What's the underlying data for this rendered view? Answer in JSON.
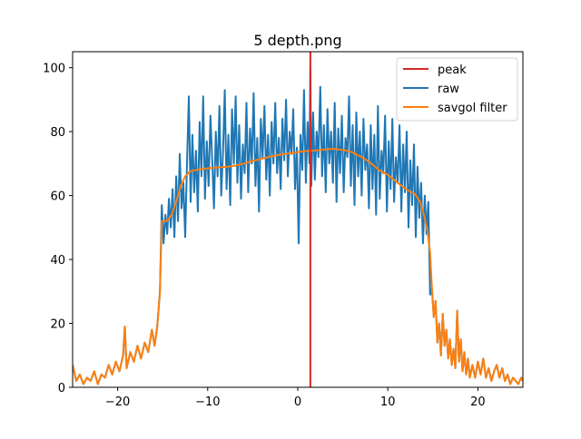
{
  "chart_data": {
    "type": "line",
    "title": "5 depth.png",
    "xlabel": "",
    "ylabel": "",
    "xlim": [
      -25,
      25
    ],
    "ylim": [
      0,
      105
    ],
    "xticks": [
      -20,
      -10,
      0,
      10,
      20
    ],
    "yticks": [
      0,
      20,
      40,
      60,
      80,
      100
    ],
    "grid": false,
    "legend_position": "top-right",
    "peak": {
      "name": "peak",
      "x": 1.4,
      "color": "#d62728"
    },
    "series": [
      {
        "name": "raw",
        "color": "#1f77b4",
        "points": [
          [
            -25.0,
            7
          ],
          [
            -24.6,
            2
          ],
          [
            -24.2,
            4
          ],
          [
            -23.8,
            1
          ],
          [
            -23.4,
            3
          ],
          [
            -23.0,
            2
          ],
          [
            -22.6,
            5
          ],
          [
            -22.2,
            1
          ],
          [
            -21.8,
            4
          ],
          [
            -21.4,
            3
          ],
          [
            -21.0,
            7
          ],
          [
            -20.6,
            4
          ],
          [
            -20.2,
            8
          ],
          [
            -19.8,
            5
          ],
          [
            -19.4,
            10
          ],
          [
            -19.2,
            19
          ],
          [
            -19.0,
            6
          ],
          [
            -18.6,
            11
          ],
          [
            -18.2,
            8
          ],
          [
            -17.8,
            13
          ],
          [
            -17.4,
            9
          ],
          [
            -17.0,
            14
          ],
          [
            -16.6,
            11
          ],
          [
            -16.2,
            18
          ],
          [
            -15.9,
            13
          ],
          [
            -15.6,
            19
          ],
          [
            -15.3,
            30
          ],
          [
            -15.1,
            57
          ],
          [
            -14.9,
            45
          ],
          [
            -14.7,
            54
          ],
          [
            -14.5,
            48
          ],
          [
            -14.3,
            59
          ],
          [
            -14.1,
            50
          ],
          [
            -13.9,
            62
          ],
          [
            -13.7,
            47
          ],
          [
            -13.5,
            66
          ],
          [
            -13.3,
            52
          ],
          [
            -13.1,
            73
          ],
          [
            -12.9,
            56
          ],
          [
            -12.7,
            64
          ],
          [
            -12.5,
            47
          ],
          [
            -12.3,
            70
          ],
          [
            -12.1,
            91
          ],
          [
            -11.9,
            58
          ],
          [
            -11.7,
            79
          ],
          [
            -11.5,
            61
          ],
          [
            -11.3,
            74
          ],
          [
            -11.1,
            55
          ],
          [
            -10.9,
            83
          ],
          [
            -10.7,
            66
          ],
          [
            -10.5,
            91
          ],
          [
            -10.3,
            59
          ],
          [
            -10.1,
            77
          ],
          [
            -9.9,
            63
          ],
          [
            -9.7,
            85
          ],
          [
            -9.5,
            71
          ],
          [
            -9.3,
            56
          ],
          [
            -9.1,
            80
          ],
          [
            -8.9,
            66
          ],
          [
            -8.7,
            88
          ],
          [
            -8.5,
            60
          ],
          [
            -8.3,
            74
          ],
          [
            -8.1,
            93
          ],
          [
            -7.9,
            62
          ],
          [
            -7.7,
            79
          ],
          [
            -7.5,
            57
          ],
          [
            -7.3,
            87
          ],
          [
            -7.1,
            70
          ],
          [
            -6.9,
            91
          ],
          [
            -6.7,
            64
          ],
          [
            -6.5,
            82
          ],
          [
            -6.3,
            59
          ],
          [
            -6.1,
            76
          ],
          [
            -5.9,
            67
          ],
          [
            -5.7,
            89
          ],
          [
            -5.5,
            61
          ],
          [
            -5.3,
            81
          ],
          [
            -5.1,
            70
          ],
          [
            -4.9,
            92
          ],
          [
            -4.7,
            63
          ],
          [
            -4.5,
            78
          ],
          [
            -4.3,
            55
          ],
          [
            -4.1,
            84
          ],
          [
            -3.9,
            72
          ],
          [
            -3.7,
            88
          ],
          [
            -3.5,
            65
          ],
          [
            -3.3,
            79
          ],
          [
            -3.1,
            60
          ],
          [
            -2.9,
            83
          ],
          [
            -2.7,
            70
          ],
          [
            -2.5,
            89
          ],
          [
            -2.3,
            67
          ],
          [
            -2.1,
            78
          ],
          [
            -1.9,
            62
          ],
          [
            -1.7,
            84
          ],
          [
            -1.5,
            71
          ],
          [
            -1.3,
            90
          ],
          [
            -1.1,
            66
          ],
          [
            -0.9,
            80
          ],
          [
            -0.7,
            73
          ],
          [
            -0.5,
            87
          ],
          [
            -0.3,
            62
          ],
          [
            -0.1,
            75
          ],
          [
            0.1,
            45
          ],
          [
            0.3,
            79
          ],
          [
            0.5,
            68
          ],
          [
            0.7,
            93
          ],
          [
            0.9,
            64
          ],
          [
            1.1,
            83
          ],
          [
            1.3,
            70
          ],
          [
            1.4,
            100
          ],
          [
            1.5,
            63
          ],
          [
            1.7,
            86
          ],
          [
            1.9,
            65
          ],
          [
            2.1,
            80
          ],
          [
            2.3,
            72
          ],
          [
            2.5,
            94
          ],
          [
            2.7,
            66
          ],
          [
            2.9,
            82
          ],
          [
            3.1,
            61
          ],
          [
            3.3,
            87
          ],
          [
            3.5,
            70
          ],
          [
            3.7,
            80
          ],
          [
            3.9,
            64
          ],
          [
            4.1,
            89
          ],
          [
            4.3,
            58
          ],
          [
            4.5,
            81
          ],
          [
            4.7,
            67
          ],
          [
            4.9,
            85
          ],
          [
            5.1,
            61
          ],
          [
            5.3,
            78
          ],
          [
            5.5,
            72
          ],
          [
            5.7,
            91
          ],
          [
            5.9,
            63
          ],
          [
            6.1,
            82
          ],
          [
            6.3,
            57
          ],
          [
            6.5,
            86
          ],
          [
            6.7,
            66
          ],
          [
            6.9,
            80
          ],
          [
            7.1,
            60
          ],
          [
            7.3,
            84
          ],
          [
            7.5,
            68
          ],
          [
            7.7,
            76
          ],
          [
            7.9,
            56
          ],
          [
            8.1,
            82
          ],
          [
            8.3,
            62
          ],
          [
            8.5,
            79
          ],
          [
            8.7,
            54
          ],
          [
            8.9,
            88
          ],
          [
            9.1,
            59
          ],
          [
            9.3,
            74
          ],
          [
            9.5,
            67
          ],
          [
            9.7,
            85
          ],
          [
            9.9,
            55
          ],
          [
            10.1,
            77
          ],
          [
            10.3,
            62
          ],
          [
            10.5,
            84
          ],
          [
            10.7,
            58
          ],
          [
            10.9,
            72
          ],
          [
            11.1,
            64
          ],
          [
            11.3,
            82
          ],
          [
            11.5,
            55
          ],
          [
            11.7,
            76
          ],
          [
            11.9,
            61
          ],
          [
            12.1,
            80
          ],
          [
            12.3,
            50
          ],
          [
            12.5,
            71
          ],
          [
            12.7,
            57
          ],
          [
            12.9,
            76
          ],
          [
            13.1,
            47
          ],
          [
            13.3,
            69
          ],
          [
            13.5,
            53
          ],
          [
            13.7,
            64
          ],
          [
            13.9,
            45
          ],
          [
            14.1,
            60
          ],
          [
            14.3,
            48
          ],
          [
            14.5,
            58
          ],
          [
            14.7,
            29
          ],
          [
            14.9,
            31
          ],
          [
            15.1,
            22
          ],
          [
            15.3,
            27
          ],
          [
            15.5,
            14
          ],
          [
            15.7,
            20
          ],
          [
            15.9,
            10
          ],
          [
            16.1,
            23
          ],
          [
            16.3,
            13
          ],
          [
            16.5,
            18
          ],
          [
            16.7,
            9
          ],
          [
            16.9,
            15
          ],
          [
            17.1,
            7
          ],
          [
            17.3,
            12
          ],
          [
            17.5,
            6
          ],
          [
            17.7,
            24
          ],
          [
            17.9,
            8
          ],
          [
            18.1,
            15
          ],
          [
            18.3,
            5
          ],
          [
            18.5,
            11
          ],
          [
            18.7,
            4
          ],
          [
            18.9,
            9
          ],
          [
            19.1,
            3
          ],
          [
            19.4,
            7
          ],
          [
            19.7,
            3
          ],
          [
            20.0,
            8
          ],
          [
            20.3,
            4
          ],
          [
            20.6,
            9
          ],
          [
            20.9,
            3
          ],
          [
            21.2,
            6
          ],
          [
            21.5,
            2
          ],
          [
            21.8,
            5
          ],
          [
            22.1,
            7
          ],
          [
            22.4,
            3
          ],
          [
            22.7,
            6
          ],
          [
            23.0,
            2
          ],
          [
            23.3,
            4
          ],
          [
            23.6,
            1
          ],
          [
            23.9,
            3
          ],
          [
            24.2,
            2
          ],
          [
            24.5,
            1
          ],
          [
            24.8,
            3
          ],
          [
            25.0,
            2
          ]
        ]
      },
      {
        "name": "savgol filter",
        "color": "#ff7f0e",
        "points": [
          [
            -25.0,
            7
          ],
          [
            -24.6,
            2
          ],
          [
            -24.2,
            4
          ],
          [
            -23.8,
            1
          ],
          [
            -23.4,
            3
          ],
          [
            -23.0,
            2
          ],
          [
            -22.6,
            5
          ],
          [
            -22.2,
            1
          ],
          [
            -21.8,
            4
          ],
          [
            -21.4,
            3
          ],
          [
            -21.0,
            7
          ],
          [
            -20.6,
            4
          ],
          [
            -20.2,
            8
          ],
          [
            -19.8,
            5
          ],
          [
            -19.4,
            10
          ],
          [
            -19.2,
            19
          ],
          [
            -19.0,
            6
          ],
          [
            -18.6,
            11
          ],
          [
            -18.2,
            8
          ],
          [
            -17.8,
            13
          ],
          [
            -17.4,
            9
          ],
          [
            -17.0,
            14
          ],
          [
            -16.6,
            11
          ],
          [
            -16.2,
            18
          ],
          [
            -15.9,
            13
          ],
          [
            -15.6,
            19
          ],
          [
            -15.3,
            30
          ],
          [
            -15.1,
            52
          ],
          [
            -14.5,
            52
          ],
          [
            -14.0,
            54
          ],
          [
            -13.5,
            58
          ],
          [
            -13.0,
            63
          ],
          [
            -12.5,
            66
          ],
          [
            -12.0,
            67.5
          ],
          [
            -11.0,
            68.2
          ],
          [
            -10.0,
            68.5
          ],
          [
            -9.0,
            68.8
          ],
          [
            -8.0,
            69.0
          ],
          [
            -7.0,
            69.3
          ],
          [
            -6.0,
            70.0
          ],
          [
            -5.0,
            70.8
          ],
          [
            -4.0,
            71.5
          ],
          [
            -3.0,
            72.2
          ],
          [
            -2.0,
            72.8
          ],
          [
            -1.0,
            73.2
          ],
          [
            0.0,
            73.6
          ],
          [
            1.0,
            73.9
          ],
          [
            2.0,
            74.1
          ],
          [
            3.0,
            74.4
          ],
          [
            4.0,
            74.6
          ],
          [
            5.0,
            74.3
          ],
          [
            6.0,
            73.6
          ],
          [
            7.0,
            72.2
          ],
          [
            8.0,
            70.4
          ],
          [
            9.0,
            68.0
          ],
          [
            10.0,
            66.5
          ],
          [
            11.0,
            64.2
          ],
          [
            12.0,
            62.0
          ],
          [
            13.0,
            60.5
          ],
          [
            13.6,
            58.0
          ],
          [
            14.0,
            54.0
          ],
          [
            14.4,
            49.0
          ],
          [
            14.7,
            42.0
          ],
          [
            14.9,
            31
          ],
          [
            15.1,
            22
          ],
          [
            15.3,
            27
          ],
          [
            15.5,
            14
          ],
          [
            15.7,
            20
          ],
          [
            15.9,
            10
          ],
          [
            16.1,
            23
          ],
          [
            16.3,
            13
          ],
          [
            16.5,
            18
          ],
          [
            16.7,
            9
          ],
          [
            16.9,
            15
          ],
          [
            17.1,
            7
          ],
          [
            17.3,
            12
          ],
          [
            17.5,
            6
          ],
          [
            17.7,
            24
          ],
          [
            17.9,
            8
          ],
          [
            18.1,
            15
          ],
          [
            18.3,
            5
          ],
          [
            18.5,
            11
          ],
          [
            18.7,
            4
          ],
          [
            18.9,
            9
          ],
          [
            19.1,
            3
          ],
          [
            19.4,
            7
          ],
          [
            19.7,
            3
          ],
          [
            20.0,
            8
          ],
          [
            20.3,
            4
          ],
          [
            20.6,
            9
          ],
          [
            20.9,
            3
          ],
          [
            21.2,
            6
          ],
          [
            21.5,
            2
          ],
          [
            21.8,
            5
          ],
          [
            22.1,
            7
          ],
          [
            22.4,
            3
          ],
          [
            22.7,
            6
          ],
          [
            23.0,
            2
          ],
          [
            23.3,
            4
          ],
          [
            23.6,
            1
          ],
          [
            23.9,
            3
          ],
          [
            24.2,
            2
          ],
          [
            24.5,
            1
          ],
          [
            24.8,
            3
          ],
          [
            25.0,
            2
          ]
        ]
      }
    ],
    "legend": [
      "peak",
      "raw",
      "savgol filter"
    ]
  }
}
